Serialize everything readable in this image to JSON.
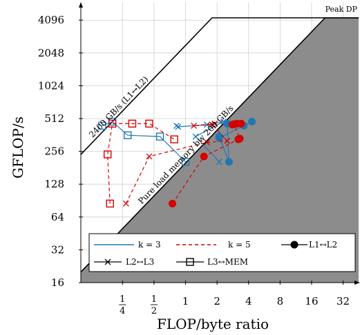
{
  "chart_data": {
    "type": "scatter",
    "xlabel": "FLOP/byte ratio",
    "ylabel": "GFLOP/s",
    "x_scale": "log2",
    "y_scale": "log2",
    "xlim": [
      0.1,
      45
    ],
    "ylim": [
      16,
      6000
    ],
    "grid": true,
    "legend_position": "bottom",
    "x_ticks": [
      {
        "value": 0.25,
        "num": "1",
        "den": "4"
      },
      {
        "value": 0.5,
        "num": "1",
        "den": "2"
      },
      {
        "value": 1,
        "label": "1"
      },
      {
        "value": 2,
        "label": "2"
      },
      {
        "value": 4,
        "label": "4"
      },
      {
        "value": 8,
        "label": "8"
      },
      {
        "value": 16,
        "label": "16"
      },
      {
        "value": 32,
        "label": "32"
      }
    ],
    "y_ticks": [
      {
        "value": 16,
        "label": "16"
      },
      {
        "value": 32,
        "label": "32"
      },
      {
        "value": 64,
        "label": "64"
      },
      {
        "value": 128,
        "label": "128"
      },
      {
        "value": 256,
        "label": "256"
      },
      {
        "value": 512,
        "label": "512"
      },
      {
        "value": 1024,
        "label": "1024"
      },
      {
        "value": 2048,
        "label": "2048"
      },
      {
        "value": 4096,
        "label": "4096"
      }
    ],
    "rooflines": [
      {
        "label": "Peak DP",
        "bandwidth": 2400,
        "peak": 4300,
        "style": "line"
      },
      {
        "label": "2400 GB/s (L1↔L2)",
        "bandwidth": 2400,
        "style": "line"
      },
      {
        "label": "Pure load memory bw 200 GB/s",
        "bandwidth": 200,
        "peak": 4300,
        "style": "filled"
      }
    ],
    "series": [
      {
        "name": "k = 3",
        "color": "#1f77b4",
        "dash": "solid",
        "paths": [
          {
            "level": "L1↔L2",
            "points": [
              [
                2.1,
                350
              ],
              [
                2.6,
                205
              ],
              [
                2.5,
                460
              ],
              [
                3.6,
                440
              ],
              [
                4.3,
                480
              ],
              [
                2.1,
                340
              ]
            ]
          },
          {
            "level": "L2↔L3",
            "points": [
              [
                2.1,
                205
              ],
              [
                1.25,
                350
              ],
              [
                2.3,
                480
              ],
              [
                1.6,
                450
              ],
              [
                0.85,
                430
              ],
              [
                0.82,
                440
              ]
            ]
          },
          {
            "level": "L3↔MEM",
            "points": [
              [
                0.16,
                440
              ],
              [
                0.2,
                480
              ],
              [
                0.28,
                360
              ],
              [
                0.57,
                350
              ],
              [
                1.0,
                205
              ]
            ]
          }
        ]
      },
      {
        "name": "k = 5",
        "color": "#d40000",
        "dash": "dashed",
        "paths": [
          {
            "level": "L1↔L2",
            "points": [
              [
                0.75,
                85
              ],
              [
                1.5,
                230
              ],
              [
                3.2,
                330
              ],
              [
                3.3,
                335
              ],
              [
                2.9,
                455
              ],
              [
                3.4,
                460
              ],
              [
                3.1,
                460
              ],
              [
                2.8,
                450
              ]
            ]
          },
          {
            "level": "L2↔L3",
            "points": [
              [
                0.27,
                85
              ],
              [
                0.45,
                230
              ],
              [
                1.6,
                310
              ],
              [
                2.5,
                320
              ],
              [
                1.8,
                450
              ],
              [
                1.2,
                440
              ],
              [
                1.9,
                460
              ]
            ]
          },
          {
            "level": "L3↔MEM",
            "points": [
              [
                0.19,
                85
              ],
              [
                0.18,
                240
              ],
              [
                0.2,
                460
              ],
              [
                0.31,
                460
              ],
              [
                0.45,
                460
              ],
              [
                0.78,
                330
              ]
            ]
          }
        ]
      }
    ],
    "legend": [
      {
        "label": "k = 3",
        "kind": "line",
        "color": "#1f77b4",
        "dash": "solid"
      },
      {
        "label": "k = 5",
        "kind": "line",
        "color": "#d40000",
        "dash": "dashed"
      },
      {
        "label": "L1↔L2",
        "kind": "marker",
        "marker": "circle"
      },
      {
        "label": "L2↔L3",
        "kind": "marker",
        "marker": "cross"
      },
      {
        "label": "L3↔MEM",
        "kind": "marker",
        "marker": "square"
      }
    ]
  }
}
